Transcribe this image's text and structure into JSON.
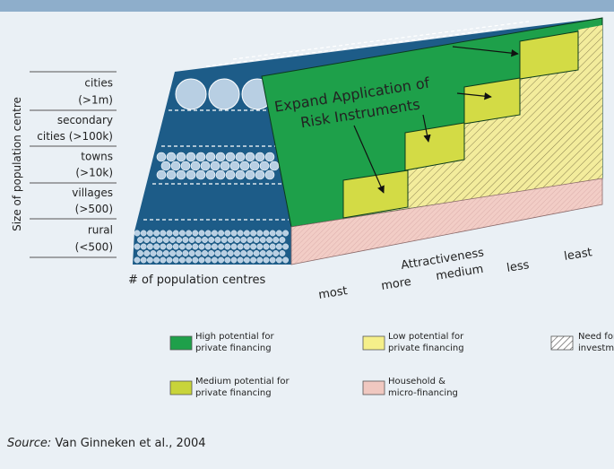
{
  "y_axis_label": "Size of population centre",
  "x_axis_label": "# of population centres",
  "size_levels": [
    {
      "lines": [
        "cities",
        "(>1m)"
      ]
    },
    {
      "lines": [
        "secondary",
        "cities (>100k)"
      ]
    },
    {
      "lines": [
        "towns",
        "(>10k)"
      ]
    },
    {
      "lines": [
        "villages",
        "(>500)"
      ]
    },
    {
      "lines": [
        "rural",
        "(<500)"
      ]
    }
  ],
  "annotation": [
    "Expand Application of",
    "Risk Instruments"
  ],
  "attractiveness": {
    "title": "Attractiveness",
    "levels": [
      "most",
      "more",
      "medium",
      "less",
      "least"
    ]
  },
  "legend": [
    {
      "label": [
        "High potential for",
        "private financing"
      ]
    },
    {
      "label": [
        "Low potential for",
        "private financing"
      ]
    },
    {
      "label": [
        "Need for public",
        "investment"
      ]
    },
    {
      "label": [
        "Medium potential for",
        "private financing"
      ]
    },
    {
      "label": [
        "Household &",
        "micro-financing"
      ]
    }
  ],
  "source": {
    "prefix": "Source:",
    "text": "Van Ginneken et al., 2004"
  }
}
